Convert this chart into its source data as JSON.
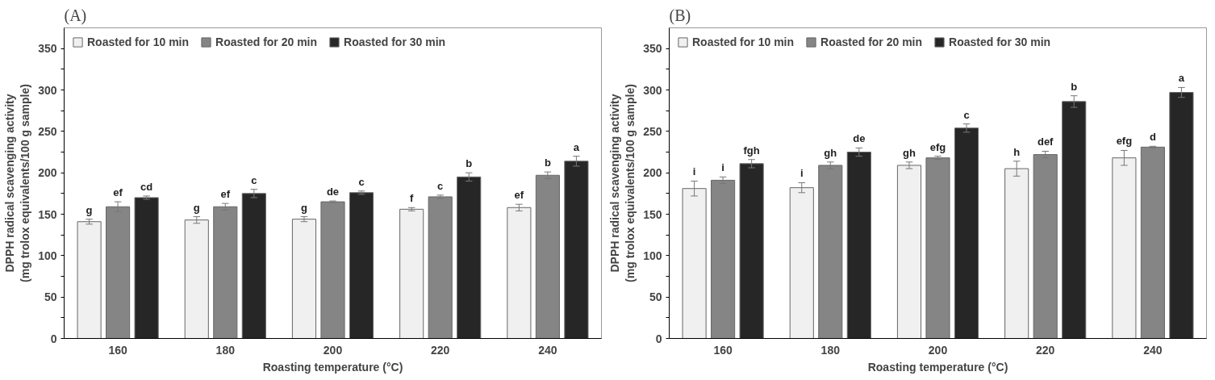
{
  "chart_data": [
    {
      "type": "bar",
      "title": "(A)",
      "xlabel": "Roasting temperature (°C)",
      "ylabel": "DPPH radical scavenging activity\n(mg trolox equivalents/100 g sample)",
      "categories": [
        "160",
        "180",
        "200",
        "220",
        "240"
      ],
      "series": [
        {
          "name": "Roasted for 10 min",
          "color": "#f0f0f0",
          "values": [
            141,
            143,
            144,
            156,
            158
          ],
          "errors": [
            3,
            4,
            3,
            2,
            4
          ],
          "value_labels": [
            "g",
            "g",
            "g",
            "f",
            "ef"
          ]
        },
        {
          "name": "Roasted for 20 min",
          "color": "#858585",
          "values": [
            159,
            159,
            165,
            171,
            197
          ],
          "errors": [
            6,
            4,
            1,
            2,
            4
          ],
          "value_labels": [
            "ef",
            "ef",
            "de",
            "c",
            "b"
          ]
        },
        {
          "name": "Roasted for 30 min",
          "color": "#262626",
          "values": [
            170,
            175,
            176,
            195,
            214
          ],
          "errors": [
            2,
            5,
            2,
            5,
            6
          ],
          "value_labels": [
            "cd",
            "c",
            "c",
            "b",
            "a"
          ]
        }
      ],
      "ylim": [
        0,
        375
      ],
      "yticks": [
        0,
        {
          "value": 25,
          "label": null
        },
        50,
        {
          "value": 75,
          "label": null
        },
        100,
        {
          "value": 125,
          "label": null
        },
        150,
        {
          "value": 175,
          "label": null
        },
        200,
        {
          "value": 225,
          "label": null
        },
        250,
        {
          "value": 275,
          "label": null
        },
        300,
        {
          "value": 325,
          "label": null
        },
        350
      ],
      "legend": "top left",
      "grid": false
    },
    {
      "type": "bar",
      "title": "(B)",
      "xlabel": "Roasting temperature (°C)",
      "ylabel": "DPPH radical scavenging activity\n(mg trolox equivalents/100 g sample)",
      "categories": [
        "160",
        "180",
        "200",
        "220",
        "240"
      ],
      "series": [
        {
          "name": "Roasted for 10 min",
          "color": "#f0f0f0",
          "values": [
            181,
            182,
            209,
            205,
            218
          ],
          "errors": [
            9,
            6,
            4,
            9,
            9
          ],
          "value_labels": [
            "i",
            "i",
            "gh",
            "h",
            "efg"
          ]
        },
        {
          "name": "Roasted for 20 min",
          "color": "#858585",
          "values": [
            191,
            209,
            218,
            222,
            231
          ],
          "errors": [
            4,
            4,
            2,
            4,
            1
          ],
          "value_labels": [
            "i",
            "gh",
            "efg",
            "def",
            "d"
          ]
        },
        {
          "name": "Roasted for 30 min",
          "color": "#262626",
          "values": [
            211,
            225,
            254,
            286,
            297
          ],
          "errors": [
            5,
            5,
            5,
            7,
            6
          ],
          "value_labels": [
            "fgh",
            "de",
            "c",
            "b",
            "a"
          ]
        }
      ],
      "ylim": [
        0,
        375
      ],
      "yticks": [
        0,
        {
          "value": 25,
          "label": null
        },
        50,
        {
          "value": 75,
          "label": null
        },
        100,
        {
          "value": 125,
          "label": null
        },
        150,
        {
          "value": 175,
          "label": null
        },
        200,
        {
          "value": 225,
          "label": null
        },
        250,
        {
          "value": 275,
          "label": null
        },
        300,
        {
          "value": 325,
          "label": null
        },
        350
      ],
      "legend": "top left",
      "grid": false
    }
  ]
}
